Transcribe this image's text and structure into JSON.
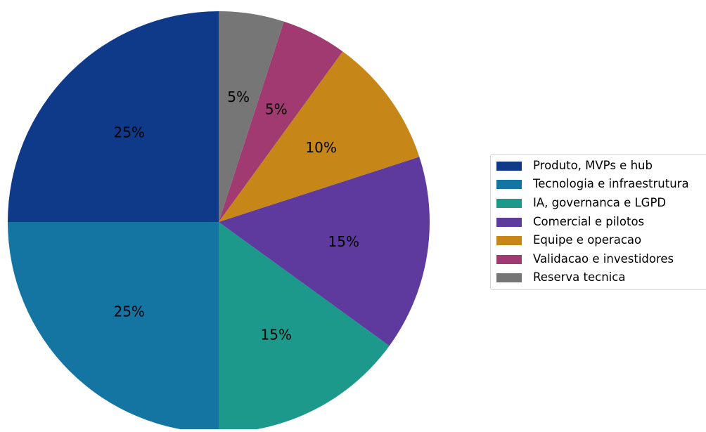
{
  "chart_data": {
    "type": "pie",
    "title": "",
    "slices": [
      {
        "label": "Produto, MVPs e hub",
        "value": 25,
        "display": "25%",
        "color": "#0f3a8a"
      },
      {
        "label": "Tecnologia e infraestrutura",
        "value": 25,
        "display": "25%",
        "color": "#1475a3"
      },
      {
        "label": "IA, governanca e LGPD",
        "value": 15,
        "display": "15%",
        "color": "#1c998a"
      },
      {
        "label": "Comercial e pilotos",
        "value": 15,
        "display": "15%",
        "color": "#5e3a9e"
      },
      {
        "label": "Equipe e operacao",
        "value": 10,
        "display": "10%",
        "color": "#c78718"
      },
      {
        "label": "Validacao e investidores",
        "value": 5,
        "display": "5%",
        "color": "#a03a70"
      },
      {
        "label": "Reserva tecnica",
        "value": 5,
        "display": "5%",
        "color": "#767676"
      }
    ],
    "start_angle_deg": 90,
    "direction": "counterclockwise",
    "legend_position": "right"
  }
}
